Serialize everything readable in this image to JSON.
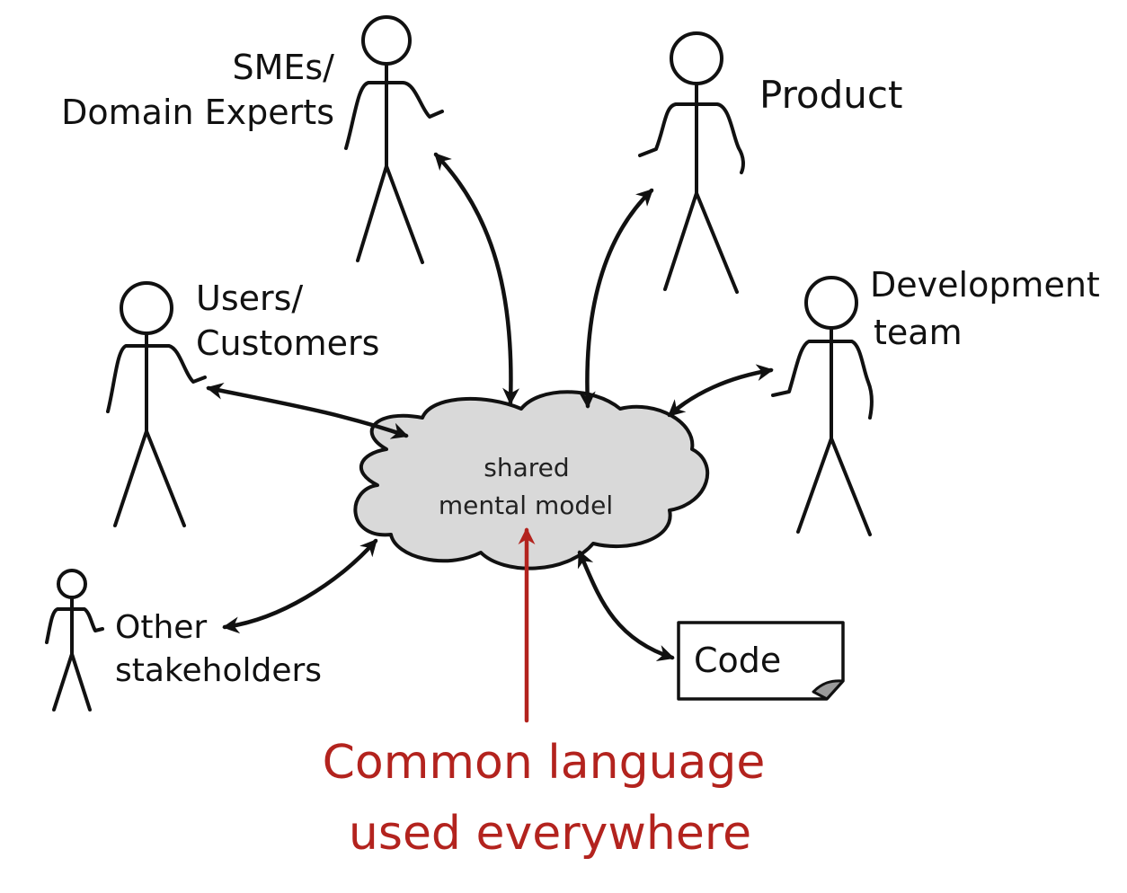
{
  "diagram": {
    "cloud_text": [
      "shared",
      "mental model"
    ],
    "stakeholders": {
      "smes": [
        "SMEs/",
        "Domain Experts"
      ],
      "product": [
        "Product"
      ],
      "users": [
        "Users/",
        "Customers"
      ],
      "dev_team": [
        "Development",
        "team"
      ],
      "other": [
        "Other",
        "stakeholders"
      ]
    },
    "code_label": "Code",
    "callout": [
      "Common language",
      "used everywhere"
    ],
    "colors": {
      "ink": "#111111",
      "cloud_fill": "#d9d9d9",
      "accent_red": "#b3231e",
      "page_fill": "#ffffff",
      "page_fold": "#9a9a9a"
    }
  }
}
